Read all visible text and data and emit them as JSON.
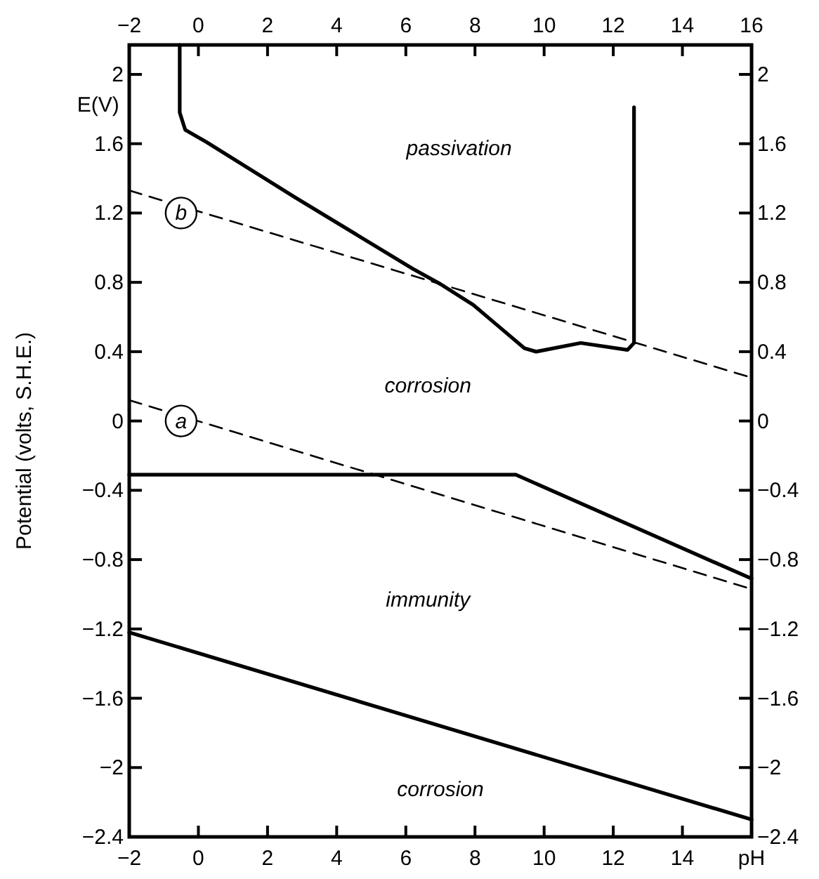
{
  "chart_data": {
    "type": "line",
    "ylabel": "Potential (volts, S.H.E.)",
    "xlabel": "pH",
    "xlim": [
      -2,
      16
    ],
    "xticks": [
      -2,
      0,
      2,
      4,
      6,
      8,
      10,
      12,
      14
    ],
    "x2lim": [
      -2,
      16
    ],
    "x2ticks": [
      -2,
      0,
      2,
      4,
      6,
      8,
      10,
      12,
      14,
      16
    ],
    "ylim": [
      -2.4,
      2.17
    ],
    "yticks": [
      -2.4,
      -2,
      -1.6,
      -1.2,
      -0.8,
      -0.4,
      0,
      0.4,
      0.8,
      1.2,
      1.6,
      2
    ],
    "y2lim": [
      -2.4,
      2.17
    ],
    "y2ticks": [
      -2.4,
      -2,
      -1.6,
      -1.2,
      -0.8,
      -0.4,
      0,
      0.4,
      0.8,
      1.2,
      1.6,
      2
    ],
    "grid": false,
    "marker": "none",
    "series": [
      {
        "color": "#000000",
        "line_style": "dashed",
        "x": [
          -2,
          16
        ],
        "values": [
          1.33,
          0.25
        ]
      },
      {
        "color": "#000000",
        "line_style": "dashed",
        "x": [
          -2,
          16
        ],
        "values": [
          0.12,
          -0.97
        ]
      },
      {
        "color": "#000000",
        "line_style": "solid",
        "x": [
          -0.54,
          -0.54,
          -0.38,
          0.23,
          2.8,
          6.19,
          7.0,
          7.95,
          8.6,
          9.43,
          9.77,
          11.06,
          12.41,
          12.6,
          12.6
        ],
        "values": [
          2.17,
          1.78,
          1.68,
          1.61,
          1.29,
          0.88,
          0.79,
          0.67,
          0.56,
          0.42,
          0.4,
          0.45,
          0.41,
          0.45,
          1.81
        ]
      },
      {
        "color": "#000000",
        "line_style": "solid",
        "x": [
          -2,
          9.18,
          16
        ],
        "values": [
          -0.31,
          -0.31,
          -0.91
        ]
      },
      {
        "color": "#000000",
        "line_style": "solid",
        "x": [
          -2,
          16
        ],
        "values": [
          -1.22,
          -2.3
        ]
      }
    ],
    "annotations": [
      "E(V)",
      {
        "text": "b",
        "x": -0.5,
        "y": 1.2
      },
      {
        "text": "a",
        "x": -0.5,
        "y": 0.0
      },
      "passivation",
      "corrosion",
      "immunity",
      "corrosion"
    ]
  }
}
